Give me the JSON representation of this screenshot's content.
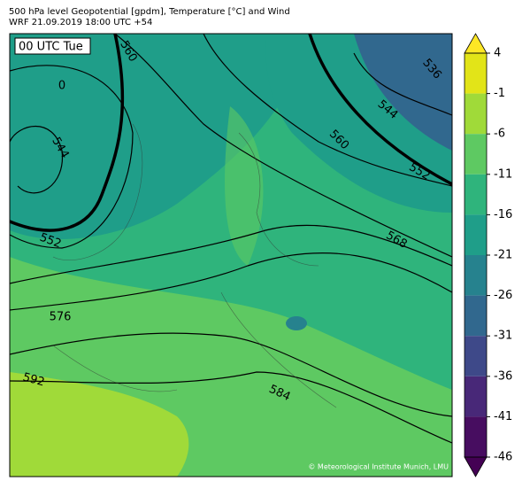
{
  "header": {
    "title": "500 hPa level Geopotential [gpdm], Temperature [°C] and Wind",
    "subtitle": "WRF 21.09.2019 18:00 UTC +54"
  },
  "map": {
    "time_label": "00 UTC Tue",
    "contour_labels": [
      "560",
      "0",
      "544",
      "552",
      "536",
      "544",
      "560",
      "552",
      "568",
      "576",
      "592",
      "584"
    ],
    "credit": "© Meteorological Institute Munich, LMU"
  },
  "colorbar": {
    "ticks": [
      4,
      -1,
      -6,
      -11,
      -16,
      -21,
      -26,
      -31,
      -36,
      -41,
      -46
    ],
    "lim": [
      -46,
      4
    ],
    "colors": [
      "#e2e418",
      "#a0da39",
      "#5ec962",
      "#2fb47c",
      "#1f9e89",
      "#26828e",
      "#31688e",
      "#3e4989",
      "#482878",
      "#470d60"
    ],
    "over_color": "#fde725",
    "under_color": "#440154"
  }
}
